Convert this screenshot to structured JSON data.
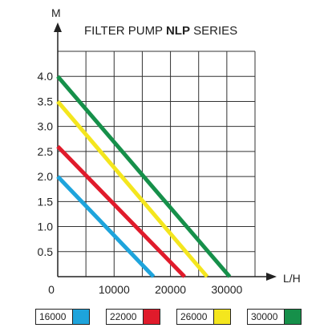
{
  "chart_data": {
    "type": "line",
    "title_prefix": "FILTER PUMP ",
    "title_bold": "NLP",
    "title_suffix": " SERIES",
    "xlabel": "L/H",
    "ylabel": "M",
    "xlim": [
      0,
      35000
    ],
    "ylim": [
      0,
      4.5
    ],
    "xticks": [
      0,
      10000,
      20000,
      30000
    ],
    "xtick_labels": [
      "0",
      "10000",
      "20000",
      "30000"
    ],
    "yticks": [
      0.5,
      1.0,
      1.5,
      2.0,
      2.5,
      3.0,
      3.5,
      4.0
    ],
    "ytick_labels": [
      "0.5",
      "1.0",
      "1.5",
      "2.0",
      "2.5",
      "3.0",
      "3.5",
      "4.0"
    ],
    "grid": true,
    "legend_position": "bottom",
    "series": [
      {
        "name": "16000",
        "color": "#1ea4dc",
        "x": [
          0,
          17000
        ],
        "y": [
          2.0,
          0
        ]
      },
      {
        "name": "22000",
        "color": "#e01b2b",
        "x": [
          0,
          22500
        ],
        "y": [
          2.6,
          0
        ]
      },
      {
        "name": "26000",
        "color": "#f4e61e",
        "x": [
          0,
          26500
        ],
        "y": [
          3.5,
          0
        ]
      },
      {
        "name": "30000",
        "color": "#16904a",
        "x": [
          0,
          30500
        ],
        "y": [
          4.0,
          0
        ]
      }
    ]
  }
}
